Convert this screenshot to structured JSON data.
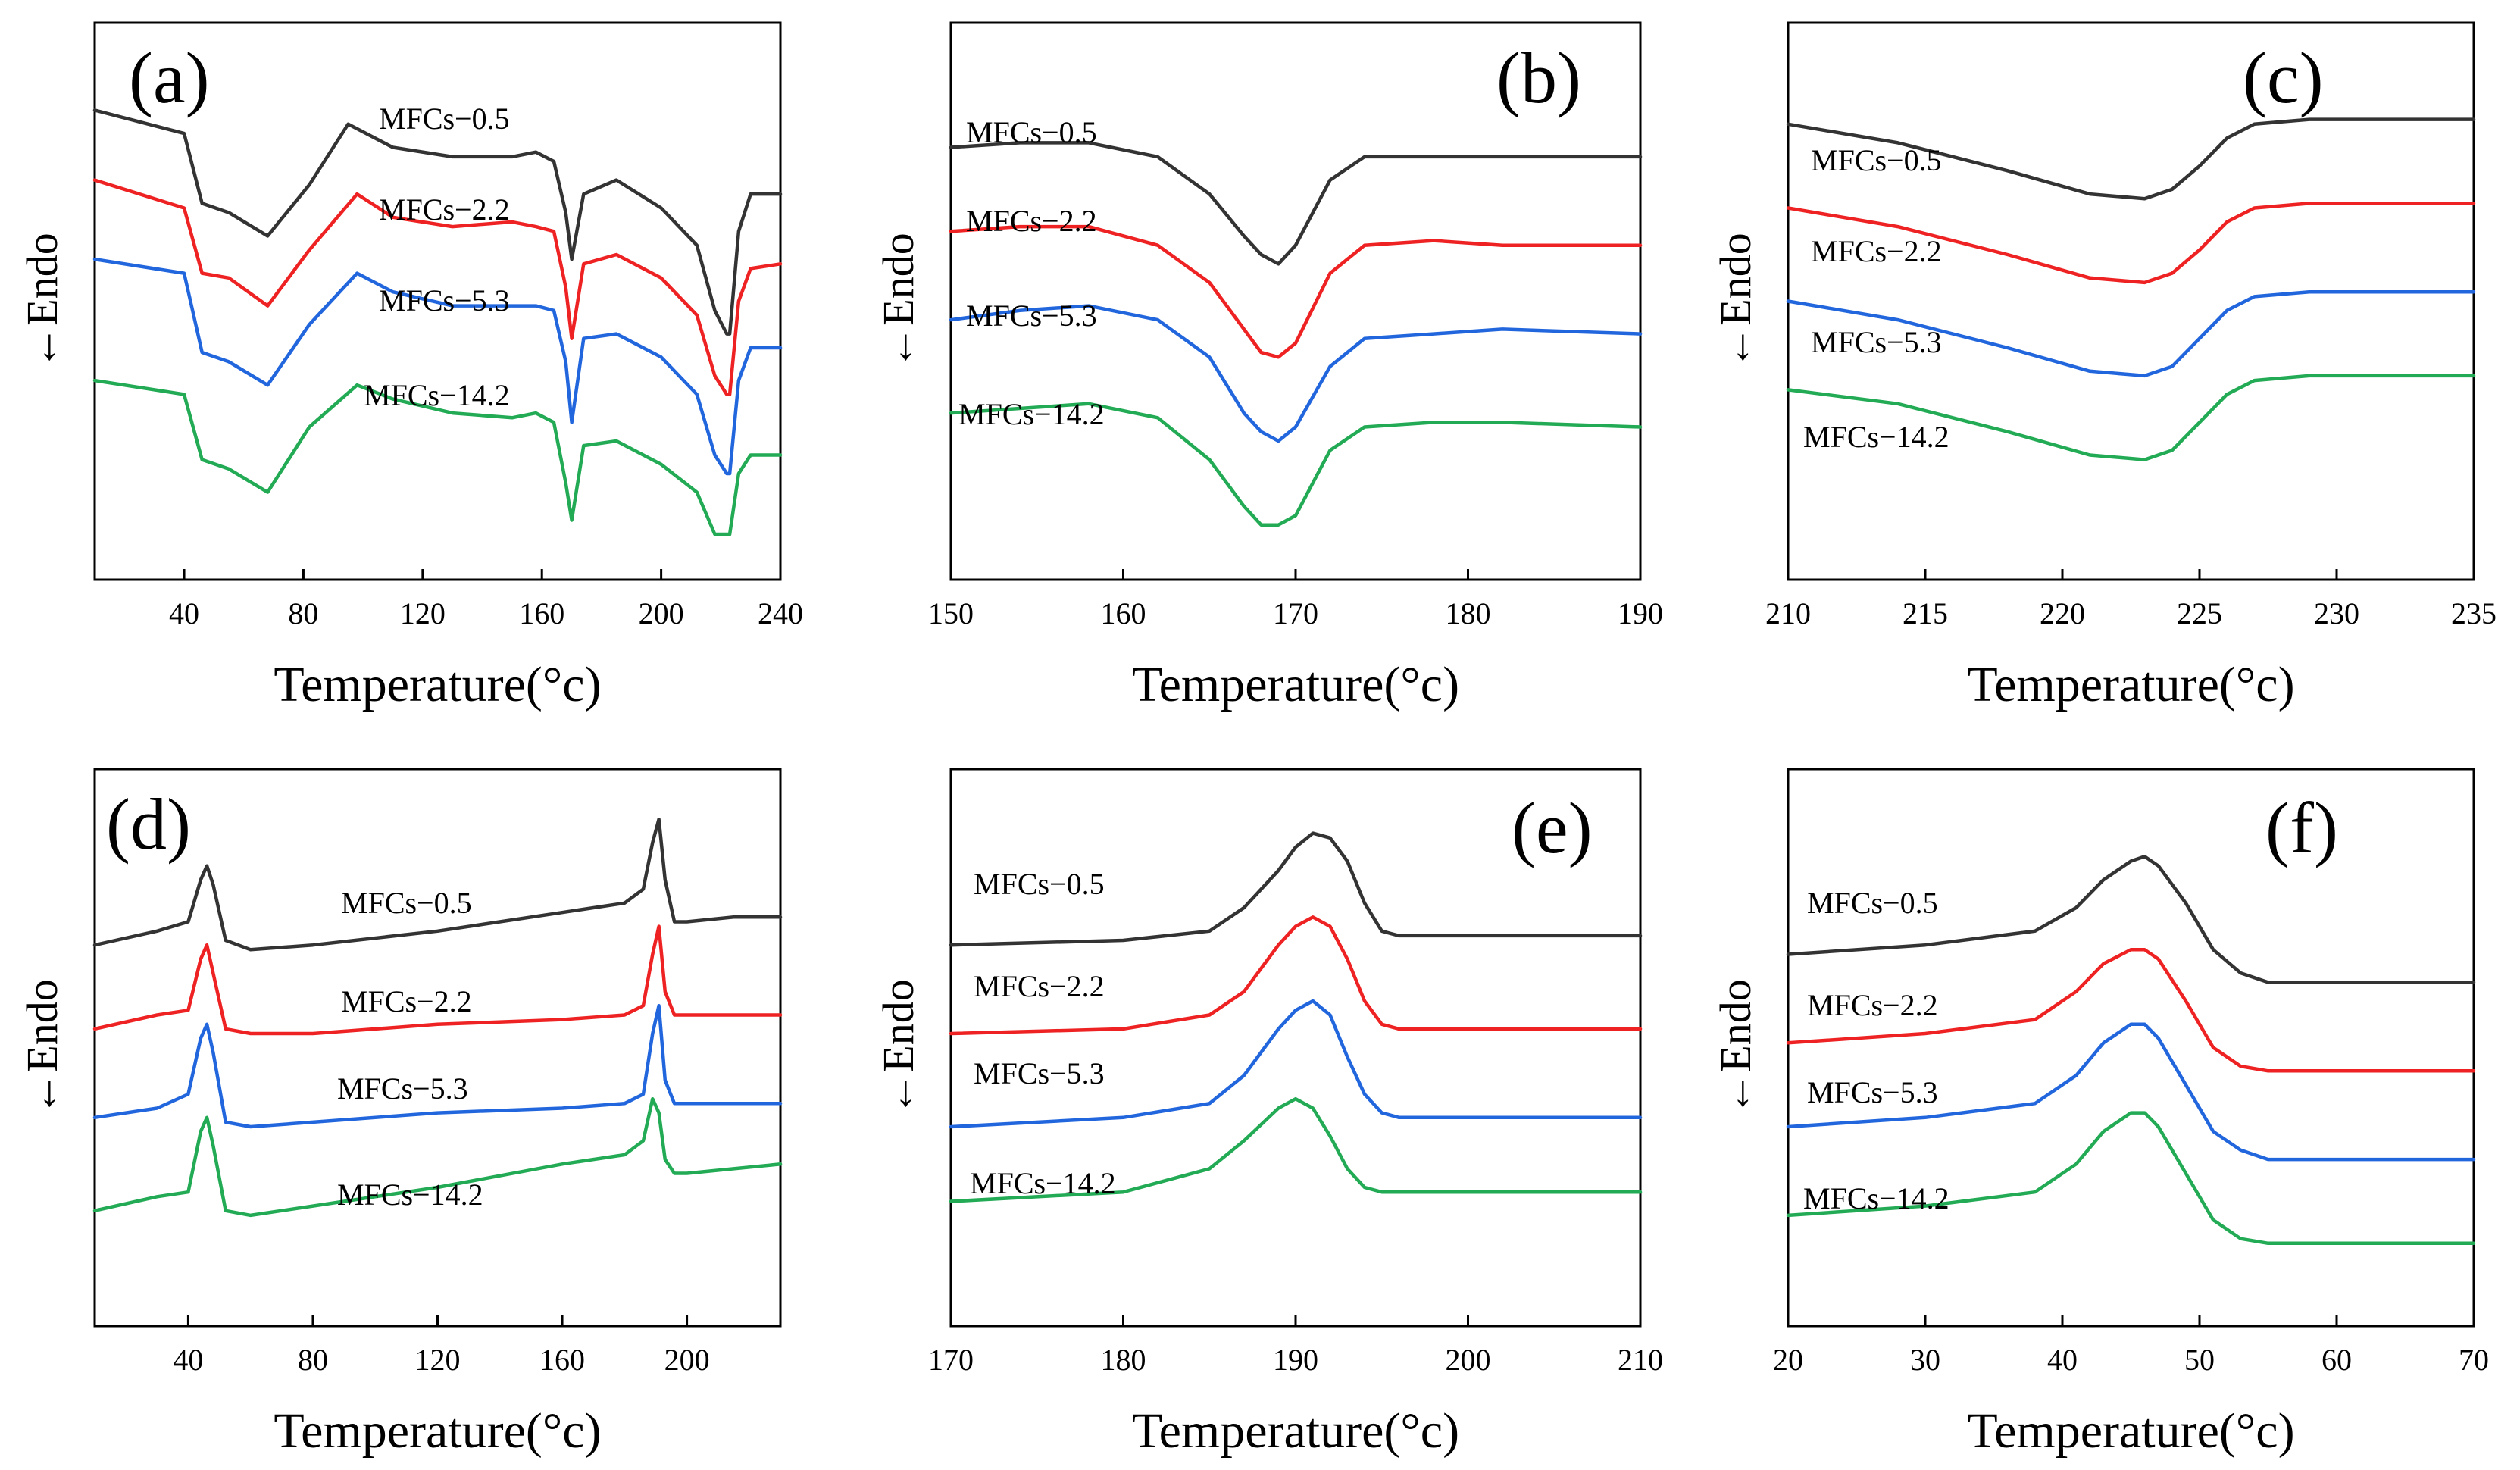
{
  "figure": {
    "xlabel": "Temperature(°c)",
    "ylabel": "←Endo"
  },
  "colors": {
    "MFCs−0.5": "#333333",
    "MFCs−2.2": "#ee2222",
    "MFCs−5.3": "#2266dd",
    "MFCs−14.2": "#22aa55"
  },
  "chart_data": [
    {
      "type": "line",
      "panel": "(a)",
      "xlabel": "Temperature(°c)",
      "ylabel": "←Endo",
      "xlim": [
        10,
        240
      ],
      "xticks": [
        40,
        80,
        120,
        160,
        200,
        240
      ],
      "ylim": [
        0,
        10
      ],
      "series": [
        {
          "name": "MFCs−0.5",
          "x": [
            10,
            40,
            46,
            55,
            68,
            82,
            95,
            110,
            130,
            150,
            158,
            164,
            168,
            170,
            174,
            185,
            200,
            212,
            218,
            222,
            223,
            226,
            230,
            240
          ],
          "y": [
            9.1,
            8.6,
            7.1,
            6.9,
            6.4,
            7.5,
            8.8,
            8.3,
            8.1,
            8.1,
            8.2,
            8.0,
            6.9,
            5.9,
            7.3,
            7.6,
            7.0,
            6.2,
            4.8,
            4.3,
            4.3,
            6.5,
            7.3,
            7.3
          ]
        },
        {
          "name": "MFCs−2.2",
          "x": [
            10,
            40,
            46,
            55,
            68,
            82,
            98,
            110,
            130,
            150,
            158,
            164,
            168,
            170,
            174,
            185,
            200,
            212,
            218,
            222,
            223,
            226,
            230,
            240
          ],
          "y": [
            7.6,
            7.0,
            5.6,
            5.5,
            4.9,
            6.1,
            7.3,
            6.8,
            6.6,
            6.7,
            6.6,
            6.5,
            5.3,
            4.2,
            5.8,
            6.0,
            5.5,
            4.7,
            3.4,
            3.0,
            3.0,
            5.0,
            5.7,
            5.8
          ]
        },
        {
          "name": "MFCs−5.3",
          "x": [
            10,
            40,
            46,
            55,
            68,
            82,
            98,
            110,
            130,
            150,
            158,
            164,
            168,
            170,
            174,
            185,
            200,
            212,
            218,
            222,
            223,
            226,
            230,
            240
          ],
          "y": [
            5.9,
            5.6,
            3.9,
            3.7,
            3.2,
            4.5,
            5.6,
            5.2,
            4.9,
            4.9,
            4.9,
            4.8,
            3.7,
            2.4,
            4.2,
            4.3,
            3.8,
            3.0,
            1.7,
            1.3,
            1.3,
            3.3,
            4.0,
            4.0
          ]
        },
        {
          "name": "MFCs−14.2",
          "x": [
            10,
            40,
            46,
            55,
            68,
            82,
            98,
            110,
            130,
            150,
            158,
            164,
            168,
            170,
            174,
            185,
            200,
            212,
            218,
            222,
            223,
            226,
            230,
            240
          ],
          "y": [
            3.3,
            3.0,
            1.6,
            1.4,
            0.9,
            2.3,
            3.2,
            2.9,
            2.6,
            2.5,
            2.6,
            2.4,
            1.1,
            0.3,
            1.9,
            2.0,
            1.5,
            0.9,
            0.0,
            0.0,
            0.0,
            1.3,
            1.7,
            1.7
          ]
        }
      ],
      "labels": [
        "MFCs−0.5",
        "MFCs−2.2",
        "MFCs−5.3",
        "MFCs−14.2"
      ]
    },
    {
      "type": "line",
      "panel": "(b)",
      "xlabel": "Temperature(°c)",
      "ylabel": "←Endo",
      "xlim": [
        150,
        190
      ],
      "xticks": [
        150,
        160,
        170,
        180,
        190
      ],
      "ylim": [
        0,
        10
      ],
      "series": [
        {
          "name": "MFCs−0.5",
          "x": [
            150,
            154,
            158,
            162,
            165,
            167,
            168,
            169,
            170,
            172,
            174,
            178,
            182,
            190
          ],
          "y": [
            8.3,
            8.4,
            8.4,
            8.1,
            7.3,
            6.4,
            6.0,
            5.8,
            6.2,
            7.6,
            8.1,
            8.1,
            8.1,
            8.1
          ]
        },
        {
          "name": "MFCs−2.2",
          "x": [
            150,
            154,
            158,
            162,
            165,
            167,
            168,
            169,
            170,
            172,
            174,
            178,
            182,
            190
          ],
          "y": [
            6.5,
            6.6,
            6.6,
            6.2,
            5.4,
            4.4,
            3.9,
            3.8,
            4.1,
            5.6,
            6.2,
            6.3,
            6.2,
            6.2
          ]
        },
        {
          "name": "MFCs−5.3",
          "x": [
            150,
            154,
            158,
            162,
            165,
            167,
            168,
            169,
            170,
            172,
            174,
            178,
            182,
            190
          ],
          "y": [
            4.6,
            4.8,
            4.9,
            4.6,
            3.8,
            2.6,
            2.2,
            2.0,
            2.3,
            3.6,
            4.2,
            4.3,
            4.4,
            4.3
          ]
        },
        {
          "name": "MFCs−14.2",
          "x": [
            150,
            154,
            158,
            162,
            165,
            167,
            168,
            169,
            170,
            172,
            174,
            178,
            182,
            190
          ],
          "y": [
            2.6,
            2.7,
            2.8,
            2.5,
            1.6,
            0.6,
            0.2,
            0.2,
            0.4,
            1.8,
            2.3,
            2.4,
            2.4,
            2.3
          ]
        }
      ],
      "labels": [
        "MFCs−0.5",
        "MFCs−2.2",
        "MFCs−5.3",
        "MFCs−14.2"
      ]
    },
    {
      "type": "line",
      "panel": "(c)",
      "xlabel": "Temperature(°c)",
      "ylabel": "←Endo",
      "xlim": [
        210,
        235
      ],
      "xticks": [
        210,
        215,
        220,
        225,
        230,
        235
      ],
      "ylim": [
        0,
        10
      ],
      "series": [
        {
          "name": "MFCs−0.5",
          "x": [
            210,
            214,
            218,
            221,
            223,
            224,
            225,
            226,
            227,
            229,
            232,
            235
          ],
          "y": [
            8.8,
            8.4,
            7.8,
            7.3,
            7.2,
            7.4,
            7.9,
            8.5,
            8.8,
            8.9,
            8.9,
            8.9
          ]
        },
        {
          "name": "MFCs−2.2",
          "x": [
            210,
            214,
            218,
            221,
            223,
            224,
            225,
            226,
            227,
            229,
            232,
            235
          ],
          "y": [
            7.0,
            6.6,
            6.0,
            5.5,
            5.4,
            5.6,
            6.1,
            6.7,
            7.0,
            7.1,
            7.1,
            7.1
          ]
        },
        {
          "name": "MFCs−5.3",
          "x": [
            210,
            214,
            218,
            221,
            223,
            224,
            225,
            226,
            227,
            229,
            232,
            235
          ],
          "y": [
            5.0,
            4.6,
            4.0,
            3.5,
            3.4,
            3.6,
            4.2,
            4.8,
            5.1,
            5.2,
            5.2,
            5.2
          ]
        },
        {
          "name": "MFCs−14.2",
          "x": [
            210,
            214,
            218,
            221,
            223,
            224,
            225,
            226,
            227,
            229,
            232,
            235
          ],
          "y": [
            3.1,
            2.8,
            2.2,
            1.7,
            1.6,
            1.8,
            2.4,
            3.0,
            3.3,
            3.4,
            3.4,
            3.4
          ]
        }
      ],
      "labels": [
        "MFCs−0.5",
        "MFCs−2.2",
        "MFCs−5.3",
        "MFCs−14.2"
      ]
    },
    {
      "type": "line",
      "panel": "(d)",
      "xlabel": "Temperature(°c)",
      "ylabel": "←Endo",
      "xlim": [
        10,
        230
      ],
      "xticks": [
        40,
        80,
        120,
        160,
        200
      ],
      "ylim": [
        0,
        10
      ],
      "series": [
        {
          "name": "MFCs−0.5",
          "x": [
            10,
            30,
            40,
            44,
            46,
            48,
            52,
            60,
            80,
            120,
            160,
            180,
            186,
            189,
            191,
            193,
            196,
            200,
            215,
            230
          ],
          "y": [
            7.2,
            7.5,
            7.7,
            8.6,
            8.9,
            8.5,
            7.3,
            7.1,
            7.2,
            7.5,
            7.9,
            8.1,
            8.4,
            9.4,
            9.9,
            8.6,
            7.7,
            7.7,
            7.8,
            7.8
          ]
        },
        {
          "name": "MFCs−2.2",
          "x": [
            10,
            30,
            40,
            44,
            46,
            48,
            52,
            60,
            80,
            120,
            160,
            180,
            186,
            189,
            191,
            193,
            196,
            200,
            215,
            230
          ],
          "y": [
            5.4,
            5.7,
            5.8,
            6.9,
            7.2,
            6.6,
            5.4,
            5.3,
            5.3,
            5.5,
            5.6,
            5.7,
            5.9,
            7.0,
            7.6,
            6.2,
            5.7,
            5.7,
            5.7,
            5.7
          ]
        },
        {
          "name": "MFCs−5.3",
          "x": [
            10,
            30,
            40,
            44,
            46,
            48,
            52,
            60,
            80,
            120,
            160,
            180,
            186,
            189,
            191,
            193,
            196,
            200,
            215,
            230
          ],
          "y": [
            3.5,
            3.7,
            4.0,
            5.2,
            5.5,
            4.9,
            3.4,
            3.3,
            3.4,
            3.6,
            3.7,
            3.8,
            4.0,
            5.3,
            5.9,
            4.3,
            3.8,
            3.8,
            3.8,
            3.8
          ]
        },
        {
          "name": "MFCs−14.2",
          "x": [
            10,
            30,
            40,
            44,
            46,
            48,
            52,
            60,
            80,
            120,
            160,
            180,
            186,
            189,
            191,
            193,
            196,
            200,
            215,
            230
          ],
          "y": [
            1.5,
            1.8,
            1.9,
            3.2,
            3.5,
            2.9,
            1.5,
            1.4,
            1.6,
            2.0,
            2.5,
            2.7,
            3.0,
            3.9,
            3.6,
            2.6,
            2.3,
            2.3,
            2.4,
            2.5
          ]
        }
      ],
      "labels": [
        "MFCs−0.5",
        "MFCs−2.2",
        "MFCs−5.3",
        "MFCs−14.2"
      ]
    },
    {
      "type": "line",
      "panel": "(e)",
      "xlabel": "Temperature(°c)",
      "ylabel": "←Endo",
      "xlim": [
        170,
        210
      ],
      "xticks": [
        170,
        180,
        190,
        200,
        210
      ],
      "ylim": [
        0,
        10
      ],
      "series": [
        {
          "name": "MFCs−0.5",
          "x": [
            170,
            180,
            185,
            187,
            189,
            190,
            191,
            192,
            193,
            194,
            195,
            196,
            200,
            210
          ],
          "y": [
            7.2,
            7.3,
            7.5,
            8.0,
            8.8,
            9.3,
            9.6,
            9.5,
            9.0,
            8.1,
            7.5,
            7.4,
            7.4,
            7.4
          ]
        },
        {
          "name": "MFCs−2.2",
          "x": [
            170,
            180,
            185,
            187,
            189,
            190,
            191,
            192,
            193,
            194,
            195,
            196,
            200,
            210
          ],
          "y": [
            5.3,
            5.4,
            5.7,
            6.2,
            7.2,
            7.6,
            7.8,
            7.6,
            6.9,
            6.0,
            5.5,
            5.4,
            5.4,
            5.4
          ]
        },
        {
          "name": "MFCs−5.3",
          "x": [
            170,
            180,
            185,
            187,
            189,
            190,
            191,
            192,
            193,
            194,
            195,
            196,
            200,
            210
          ],
          "y": [
            3.3,
            3.5,
            3.8,
            4.4,
            5.4,
            5.8,
            6.0,
            5.7,
            4.8,
            4.0,
            3.6,
            3.5,
            3.5,
            3.5
          ]
        },
        {
          "name": "MFCs−14.2",
          "x": [
            170,
            180,
            185,
            187,
            189,
            190,
            191,
            192,
            193,
            194,
            195,
            196,
            200,
            210
          ],
          "y": [
            1.7,
            1.9,
            2.4,
            3.0,
            3.7,
            3.9,
            3.7,
            3.1,
            2.4,
            2.0,
            1.9,
            1.9,
            1.9,
            1.9
          ]
        }
      ],
      "labels": [
        "MFCs−0.5",
        "MFCs−2.2",
        "MFCs−5.3",
        "MFCs−14.2"
      ]
    },
    {
      "type": "line",
      "panel": "(f)",
      "xlabel": "Temperature(°c)",
      "ylabel": "←Endo",
      "xlim": [
        20,
        70
      ],
      "xticks": [
        20,
        30,
        40,
        50,
        60,
        70
      ],
      "ylim": [
        0,
        10
      ],
      "series": [
        {
          "name": "MFCs−0.5",
          "x": [
            20,
            30,
            38,
            41,
            43,
            45,
            46,
            47,
            49,
            51,
            53,
            55,
            60,
            70
          ],
          "y": [
            7.0,
            7.2,
            7.5,
            8.0,
            8.6,
            9.0,
            9.1,
            8.9,
            8.1,
            7.1,
            6.6,
            6.4,
            6.4,
            6.4
          ]
        },
        {
          "name": "MFCs−2.2",
          "x": [
            20,
            30,
            38,
            41,
            43,
            45,
            46,
            47,
            49,
            51,
            53,
            55,
            60,
            70
          ],
          "y": [
            5.1,
            5.3,
            5.6,
            6.2,
            6.8,
            7.1,
            7.1,
            6.9,
            6.0,
            5.0,
            4.6,
            4.5,
            4.5,
            4.5
          ]
        },
        {
          "name": "MFCs−5.3",
          "x": [
            20,
            30,
            38,
            41,
            43,
            45,
            46,
            47,
            49,
            51,
            53,
            55,
            60,
            70
          ],
          "y": [
            3.3,
            3.5,
            3.8,
            4.4,
            5.1,
            5.5,
            5.5,
            5.2,
            4.2,
            3.2,
            2.8,
            2.6,
            2.6,
            2.6
          ]
        },
        {
          "name": "MFCs−14.2",
          "x": [
            20,
            30,
            38,
            41,
            43,
            45,
            46,
            47,
            49,
            51,
            53,
            55,
            60,
            70
          ],
          "y": [
            1.4,
            1.6,
            1.9,
            2.5,
            3.2,
            3.6,
            3.6,
            3.3,
            2.3,
            1.3,
            0.9,
            0.8,
            0.8,
            0.8
          ]
        }
      ],
      "labels": [
        "MFCs−0.5",
        "MFCs−2.2",
        "MFCs−5.3",
        "MFCs−14.2"
      ]
    }
  ]
}
